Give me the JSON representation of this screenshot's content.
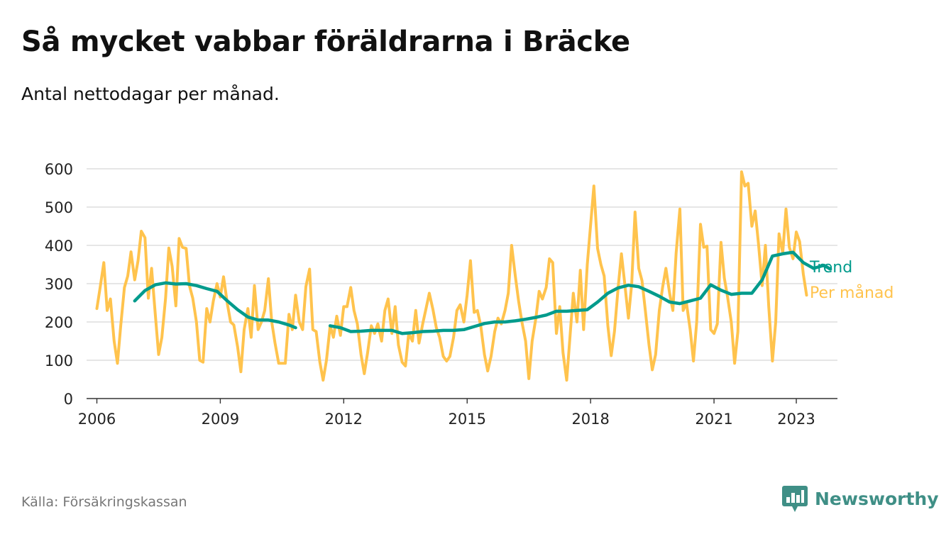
{
  "header": {
    "title": "Så mycket vabbar föräldrarna i Bräcke",
    "subtitle": "Antal nettodagar per månad."
  },
  "footer": {
    "source": "Källa: Försäkringskassan",
    "brand": "Newsworthy",
    "brand_icon": "bar-chart-icon"
  },
  "colors": {
    "per_month": "#FFC34D",
    "trend": "#009B8C",
    "grid": "#DDDDDD",
    "axis": "#333333",
    "brand": "#3F8F86"
  },
  "chart_data": {
    "type": "line",
    "title": "Så mycket vabbar föräldrarna i Bräcke",
    "subtitle": "Antal nettodagar per månad.",
    "xlabel": "",
    "ylabel": "",
    "ylim": [
      0,
      600
    ],
    "xlim": [
      2005.75,
      2024.0
    ],
    "yticks": [
      0,
      100,
      200,
      300,
      400,
      500,
      600
    ],
    "xticks": [
      2006,
      2009,
      2012,
      2015,
      2018,
      2021,
      2023
    ],
    "grid": true,
    "legend": "end-of-line labels, right",
    "series": [
      {
        "name": "Trend",
        "key": "trend",
        "points": [
          [
            2006.92,
            255
          ],
          [
            2007.17,
            282
          ],
          [
            2007.42,
            297
          ],
          [
            2007.67,
            302
          ],
          [
            2007.92,
            299
          ],
          [
            2008.17,
            300
          ],
          [
            2008.42,
            295
          ],
          [
            2008.67,
            287
          ],
          [
            2008.92,
            280
          ],
          [
            2009.17,
            255
          ],
          [
            2009.42,
            232
          ],
          [
            2009.67,
            213
          ],
          [
            2009.92,
            205
          ],
          [
            2010.17,
            205
          ],
          [
            2010.42,
            200
          ],
          [
            2010.67,
            192
          ],
          [
            2010.83,
            185
          ],
          [
            2011.67,
            190
          ],
          [
            2011.92,
            185
          ],
          [
            2012.17,
            175
          ],
          [
            2012.42,
            176
          ],
          [
            2012.67,
            178
          ],
          [
            2012.92,
            178
          ],
          [
            2013.17,
            178
          ],
          [
            2013.42,
            170
          ],
          [
            2013.67,
            172
          ],
          [
            2013.92,
            175
          ],
          [
            2014.17,
            176
          ],
          [
            2014.42,
            178
          ],
          [
            2014.67,
            178
          ],
          [
            2014.92,
            180
          ],
          [
            2015.17,
            188
          ],
          [
            2015.42,
            196
          ],
          [
            2015.67,
            200
          ],
          [
            2015.92,
            200
          ],
          [
            2016.17,
            203
          ],
          [
            2016.42,
            207
          ],
          [
            2016.67,
            212
          ],
          [
            2016.92,
            218
          ],
          [
            2017.17,
            228
          ],
          [
            2017.42,
            228
          ],
          [
            2017.67,
            230
          ],
          [
            2017.92,
            232
          ],
          [
            2018.17,
            252
          ],
          [
            2018.42,
            275
          ],
          [
            2018.67,
            289
          ],
          [
            2018.92,
            296
          ],
          [
            2019.17,
            292
          ],
          [
            2019.42,
            280
          ],
          [
            2019.67,
            267
          ],
          [
            2019.92,
            252
          ],
          [
            2020.17,
            248
          ],
          [
            2020.42,
            255
          ],
          [
            2020.67,
            262
          ],
          [
            2020.92,
            297
          ],
          [
            2021.17,
            283
          ],
          [
            2021.42,
            272
          ],
          [
            2021.67,
            275
          ],
          [
            2021.92,
            275
          ],
          [
            2022.17,
            310
          ],
          [
            2022.42,
            372
          ],
          [
            2022.67,
            378
          ],
          [
            2022.92,
            382
          ],
          [
            2023.17,
            355
          ],
          [
            2023.42,
            340
          ],
          [
            2023.67,
            348
          ],
          [
            2023.83,
            338
          ]
        ]
      },
      {
        "name": "Per månad",
        "key": "per_month",
        "points": [
          [
            2006.0,
            235
          ],
          [
            2006.08,
            290
          ],
          [
            2006.17,
            355
          ],
          [
            2006.25,
            230
          ],
          [
            2006.33,
            260
          ],
          [
            2006.42,
            150
          ],
          [
            2006.5,
            92
          ],
          [
            2006.58,
            190
          ],
          [
            2006.67,
            290
          ],
          [
            2006.75,
            320
          ],
          [
            2006.83,
            383
          ],
          [
            2006.92,
            310
          ],
          [
            2007.0,
            360
          ],
          [
            2007.08,
            437
          ],
          [
            2007.17,
            420
          ],
          [
            2007.25,
            262
          ],
          [
            2007.33,
            340
          ],
          [
            2007.42,
            220
          ],
          [
            2007.5,
            115
          ],
          [
            2007.58,
            160
          ],
          [
            2007.67,
            262
          ],
          [
            2007.75,
            393
          ],
          [
            2007.83,
            345
          ],
          [
            2007.92,
            242
          ],
          [
            2008.0,
            418
          ],
          [
            2008.08,
            395
          ],
          [
            2008.17,
            392
          ],
          [
            2008.25,
            295
          ],
          [
            2008.33,
            262
          ],
          [
            2008.42,
            200
          ],
          [
            2008.5,
            100
          ],
          [
            2008.58,
            95
          ],
          [
            2008.67,
            235
          ],
          [
            2008.75,
            200
          ],
          [
            2008.83,
            255
          ],
          [
            2008.92,
            300
          ],
          [
            2009.0,
            265
          ],
          [
            2009.08,
            318
          ],
          [
            2009.17,
            248
          ],
          [
            2009.25,
            200
          ],
          [
            2009.33,
            192
          ],
          [
            2009.42,
            135
          ],
          [
            2009.5,
            70
          ],
          [
            2009.58,
            180
          ],
          [
            2009.67,
            235
          ],
          [
            2009.75,
            160
          ],
          [
            2009.83,
            295
          ],
          [
            2009.92,
            180
          ],
          [
            2010.0,
            200
          ],
          [
            2010.08,
            230
          ],
          [
            2010.17,
            313
          ],
          [
            2010.25,
            200
          ],
          [
            2010.33,
            145
          ],
          [
            2010.42,
            92
          ],
          [
            2010.58,
            92
          ],
          [
            2010.67,
            220
          ],
          [
            2010.75,
            180
          ],
          [
            2010.83,
            270
          ],
          [
            2010.92,
            200
          ],
          [
            2011.0,
            180
          ],
          [
            2011.08,
            292
          ],
          [
            2011.17,
            338
          ],
          [
            2011.25,
            180
          ],
          [
            2011.33,
            175
          ],
          [
            2011.42,
            95
          ],
          [
            2011.5,
            48
          ],
          [
            2011.58,
            100
          ],
          [
            2011.67,
            190
          ],
          [
            2011.75,
            160
          ],
          [
            2011.83,
            215
          ],
          [
            2011.92,
            165
          ],
          [
            2012.0,
            240
          ],
          [
            2012.08,
            240
          ],
          [
            2012.17,
            290
          ],
          [
            2012.25,
            230
          ],
          [
            2012.33,
            195
          ],
          [
            2012.42,
            115
          ],
          [
            2012.5,
            65
          ],
          [
            2012.58,
            120
          ],
          [
            2012.67,
            190
          ],
          [
            2012.75,
            170
          ],
          [
            2012.83,
            195
          ],
          [
            2012.92,
            150
          ],
          [
            2013.0,
            230
          ],
          [
            2013.08,
            260
          ],
          [
            2013.17,
            170
          ],
          [
            2013.25,
            240
          ],
          [
            2013.33,
            140
          ],
          [
            2013.42,
            95
          ],
          [
            2013.5,
            85
          ],
          [
            2013.58,
            170
          ],
          [
            2013.67,
            150
          ],
          [
            2013.75,
            230
          ],
          [
            2013.83,
            145
          ],
          [
            2013.92,
            195
          ],
          [
            2014.0,
            235
          ],
          [
            2014.08,
            275
          ],
          [
            2014.17,
            232
          ],
          [
            2014.25,
            185
          ],
          [
            2014.33,
            160
          ],
          [
            2014.42,
            110
          ],
          [
            2014.5,
            98
          ],
          [
            2014.58,
            110
          ],
          [
            2014.67,
            160
          ],
          [
            2014.75,
            230
          ],
          [
            2014.83,
            245
          ],
          [
            2014.92,
            200
          ],
          [
            2015.0,
            270
          ],
          [
            2015.08,
            360
          ],
          [
            2015.17,
            225
          ],
          [
            2015.25,
            230
          ],
          [
            2015.33,
            190
          ],
          [
            2015.42,
            115
          ],
          [
            2015.5,
            72
          ],
          [
            2015.58,
            110
          ],
          [
            2015.67,
            175
          ],
          [
            2015.75,
            210
          ],
          [
            2015.83,
            195
          ],
          [
            2015.92,
            230
          ],
          [
            2016.0,
            275
          ],
          [
            2016.08,
            400
          ],
          [
            2016.17,
            320
          ],
          [
            2016.25,
            255
          ],
          [
            2016.33,
            200
          ],
          [
            2016.42,
            150
          ],
          [
            2016.5,
            52
          ],
          [
            2016.58,
            150
          ],
          [
            2016.67,
            210
          ],
          [
            2016.75,
            280
          ],
          [
            2016.83,
            260
          ],
          [
            2016.92,
            290
          ],
          [
            2017.0,
            365
          ],
          [
            2017.08,
            355
          ],
          [
            2017.17,
            170
          ],
          [
            2017.25,
            240
          ],
          [
            2017.33,
            120
          ],
          [
            2017.42,
            48
          ],
          [
            2017.58,
            275
          ],
          [
            2017.67,
            200
          ],
          [
            2017.75,
            335
          ],
          [
            2017.83,
            180
          ],
          [
            2017.92,
            350
          ],
          [
            2018.08,
            555
          ],
          [
            2018.17,
            392
          ],
          [
            2018.25,
            350
          ],
          [
            2018.33,
            320
          ],
          [
            2018.42,
            190
          ],
          [
            2018.5,
            112
          ],
          [
            2018.58,
            175
          ],
          [
            2018.67,
            290
          ],
          [
            2018.75,
            378
          ],
          [
            2018.83,
            300
          ],
          [
            2018.92,
            210
          ],
          [
            2019.0,
            300
          ],
          [
            2019.08,
            487
          ],
          [
            2019.17,
            340
          ],
          [
            2019.25,
            308
          ],
          [
            2019.33,
            230
          ],
          [
            2019.42,
            140
          ],
          [
            2019.5,
            75
          ],
          [
            2019.58,
            115
          ],
          [
            2019.67,
            230
          ],
          [
            2019.75,
            290
          ],
          [
            2019.83,
            340
          ],
          [
            2019.92,
            275
          ],
          [
            2020.0,
            230
          ],
          [
            2020.08,
            380
          ],
          [
            2020.17,
            495
          ],
          [
            2020.25,
            230
          ],
          [
            2020.33,
            250
          ],
          [
            2020.42,
            180
          ],
          [
            2020.5,
            98
          ],
          [
            2020.58,
            200
          ],
          [
            2020.67,
            455
          ],
          [
            2020.75,
            395
          ],
          [
            2020.83,
            398
          ],
          [
            2020.92,
            180
          ],
          [
            2021.0,
            170
          ],
          [
            2021.08,
            195
          ],
          [
            2021.17,
            408
          ],
          [
            2021.25,
            315
          ],
          [
            2021.33,
            265
          ],
          [
            2021.42,
            200
          ],
          [
            2021.5,
            92
          ],
          [
            2021.58,
            175
          ],
          [
            2021.67,
            592
          ],
          [
            2021.75,
            555
          ],
          [
            2021.83,
            562
          ],
          [
            2021.92,
            450
          ],
          [
            2022.0,
            490
          ],
          [
            2022.08,
            405
          ],
          [
            2022.17,
            295
          ],
          [
            2022.25,
            400
          ],
          [
            2022.33,
            240
          ],
          [
            2022.42,
            98
          ],
          [
            2022.5,
            200
          ],
          [
            2022.58,
            430
          ],
          [
            2022.67,
            380
          ],
          [
            2022.75,
            495
          ],
          [
            2022.83,
            395
          ],
          [
            2022.92,
            365
          ],
          [
            2023.0,
            435
          ],
          [
            2023.08,
            410
          ],
          [
            2023.17,
            325
          ],
          [
            2023.25,
            270
          ]
        ]
      }
    ]
  }
}
